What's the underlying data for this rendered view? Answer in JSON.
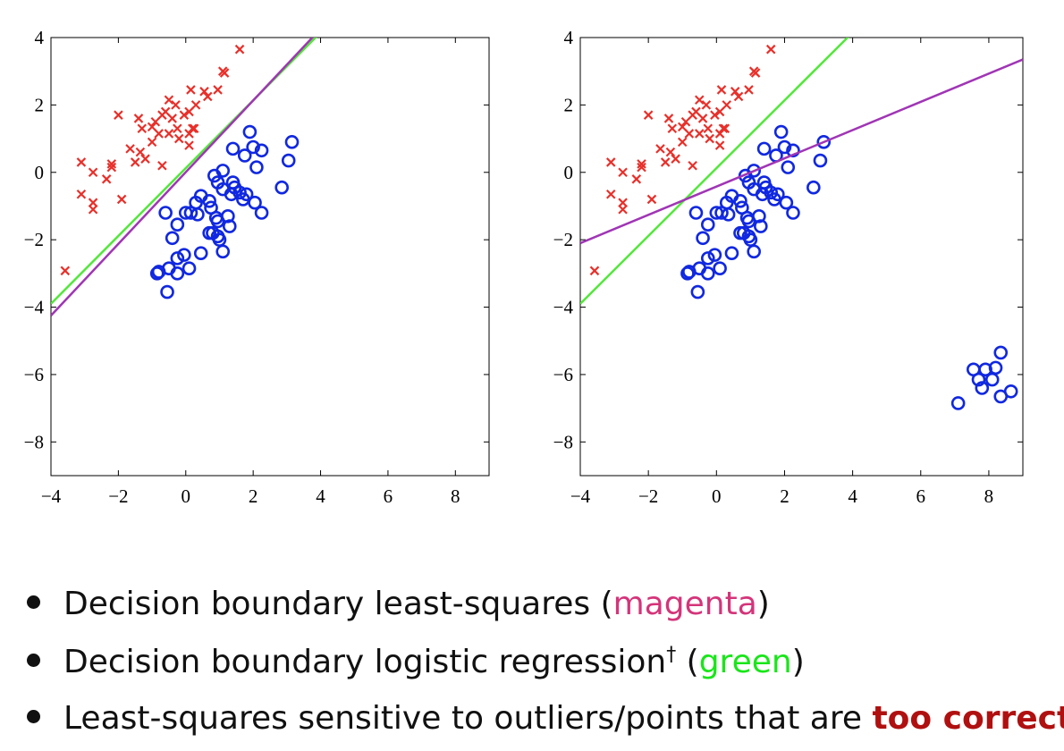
{
  "chart_data": [
    {
      "type": "scatter",
      "xlim": [
        -4,
        9
      ],
      "ylim": [
        -9,
        4
      ],
      "xticks": [
        {
          "value": -4,
          "label": "−4"
        },
        {
          "value": -2,
          "label": "−2"
        },
        0,
        2,
        4,
        6,
        8
      ],
      "yticks": [
        4,
        2,
        0,
        {
          "value": -2,
          "label": "−2"
        },
        {
          "value": -4,
          "label": "−4"
        },
        {
          "value": -6,
          "label": "−6"
        },
        {
          "value": -8,
          "label": "−8"
        }
      ],
      "series": [
        {
          "style": "cross",
          "color": "#e8302a",
          "x": [
            -3.58,
            -3.1,
            -2.75,
            -3.1,
            -2.75,
            -2.75,
            -2.35,
            -2.2,
            -2.2,
            -2.0,
            -1.9,
            -1.65,
            -1.5,
            -1.4,
            -1.35,
            -1.2,
            -1.3,
            -1.0,
            -1.0,
            -0.9,
            -0.8,
            -0.7,
            -0.6,
            -0.5,
            -0.5,
            -0.4,
            -0.3,
            -0.25,
            -0.2,
            -0.05,
            0.1,
            0.15,
            0.1,
            0.2,
            0.1,
            0.25,
            0.55,
            0.65,
            0.95,
            1.1,
            1.15,
            1.6,
            0.3,
            -0.7
          ],
          "y": [
            -2.92,
            0.3,
            0.0,
            -0.65,
            -0.9,
            -1.1,
            -0.2,
            0.25,
            0.15,
            1.7,
            -0.8,
            0.7,
            0.3,
            1.6,
            0.6,
            0.4,
            1.3,
            1.35,
            0.9,
            1.5,
            1.15,
            0.2,
            1.8,
            2.15,
            1.15,
            1.6,
            2.0,
            1.3,
            1.0,
            1.7,
            1.15,
            2.45,
            1.8,
            1.3,
            0.8,
            1.3,
            2.4,
            2.25,
            2.45,
            3.0,
            2.95,
            3.65,
            2.0,
            1.7
          ]
        },
        {
          "style": "circle",
          "color": "#1028e0",
          "x": [
            -0.85,
            -0.8,
            -0.55,
            -0.5,
            -0.25,
            -0.25,
            0.1,
            -0.05,
            -0.6,
            -0.4,
            -0.25,
            0.0,
            0.15,
            0.35,
            0.3,
            0.45,
            0.7,
            0.75,
            0.45,
            0.7,
            0.8,
            0.95,
            1.0,
            0.9,
            0.95,
            1.1,
            1.25,
            1.3,
            0.85,
            1.1,
            0.95,
            1.1,
            1.35,
            1.4,
            1.45,
            1.6,
            1.7,
            1.8,
            1.4,
            1.75,
            1.9,
            2.0,
            2.1,
            2.25,
            2.05,
            2.25,
            2.85,
            3.05,
            3.15
          ],
          "y": [
            -3.0,
            -2.95,
            -3.55,
            -2.85,
            -3.0,
            -2.55,
            -2.85,
            -2.45,
            -1.2,
            -1.95,
            -1.55,
            -1.2,
            -1.2,
            -1.25,
            -0.9,
            -0.7,
            -0.85,
            -1.05,
            -2.4,
            -1.8,
            -1.8,
            -1.9,
            -2.0,
            -1.35,
            -1.45,
            -2.35,
            -1.3,
            -1.6,
            -0.1,
            0.05,
            -0.3,
            -0.5,
            -0.65,
            -0.3,
            -0.45,
            -0.6,
            -0.8,
            -0.65,
            0.7,
            0.5,
            1.2,
            0.75,
            0.15,
            0.65,
            -0.9,
            -1.2,
            -0.45,
            0.35,
            0.9
          ]
        },
        {
          "style": "line",
          "color": "#52e83a",
          "x": [
            -4,
            3.95
          ],
          "y": [
            -3.9,
            4.1
          ]
        },
        {
          "style": "line",
          "color": "#a035b5",
          "x": [
            -4,
            3.85
          ],
          "y": [
            -4.25,
            4.1
          ]
        }
      ]
    },
    {
      "type": "scatter",
      "xlim": [
        -4,
        9
      ],
      "ylim": [
        -9,
        4
      ],
      "xticks": [
        {
          "value": -4,
          "label": "−4"
        },
        {
          "value": -2,
          "label": "−2"
        },
        0,
        2,
        4,
        6,
        8
      ],
      "yticks": [
        4,
        2,
        0,
        {
          "value": -2,
          "label": "−2"
        },
        {
          "value": -4,
          "label": "−4"
        },
        {
          "value": -6,
          "label": "−6"
        },
        {
          "value": -8,
          "label": "−8"
        }
      ],
      "series": [
        {
          "style": "cross",
          "color": "#e8302a",
          "x": [
            -3.58,
            -3.1,
            -2.75,
            -3.1,
            -2.75,
            -2.75,
            -2.35,
            -2.2,
            -2.2,
            -2.0,
            -1.9,
            -1.65,
            -1.5,
            -1.4,
            -1.35,
            -1.2,
            -1.3,
            -1.0,
            -1.0,
            -0.9,
            -0.8,
            -0.7,
            -0.6,
            -0.5,
            -0.5,
            -0.4,
            -0.3,
            -0.25,
            -0.2,
            -0.05,
            0.1,
            0.15,
            0.1,
            0.2,
            0.1,
            0.25,
            0.55,
            0.65,
            0.95,
            1.1,
            1.15,
            1.6,
            0.3,
            -0.7
          ],
          "y": [
            -2.92,
            0.3,
            0.0,
            -0.65,
            -0.9,
            -1.1,
            -0.2,
            0.25,
            0.15,
            1.7,
            -0.8,
            0.7,
            0.3,
            1.6,
            0.6,
            0.4,
            1.3,
            1.35,
            0.9,
            1.5,
            1.15,
            0.2,
            1.8,
            2.15,
            1.15,
            1.6,
            2.0,
            1.3,
            1.0,
            1.7,
            1.15,
            2.45,
            1.8,
            1.3,
            0.8,
            1.3,
            2.4,
            2.25,
            2.45,
            3.0,
            2.95,
            3.65,
            2.0,
            1.7
          ]
        },
        {
          "style": "circle",
          "color": "#1028e0",
          "x": [
            -0.85,
            -0.8,
            -0.55,
            -0.5,
            -0.25,
            -0.25,
            0.1,
            -0.05,
            -0.6,
            -0.4,
            -0.25,
            0.0,
            0.15,
            0.35,
            0.3,
            0.45,
            0.7,
            0.75,
            0.45,
            0.7,
            0.8,
            0.95,
            1.0,
            0.9,
            0.95,
            1.1,
            1.25,
            1.3,
            0.85,
            1.1,
            0.95,
            1.1,
            1.35,
            1.4,
            1.45,
            1.6,
            1.7,
            1.8,
            1.4,
            1.75,
            1.9,
            2.0,
            2.1,
            2.25,
            2.05,
            2.25,
            2.85,
            3.05,
            3.15,
            8.35,
            7.55,
            7.9,
            8.2,
            7.7,
            8.1,
            7.8,
            8.65,
            8.35,
            7.1
          ],
          "y": [
            -3.0,
            -2.95,
            -3.55,
            -2.85,
            -3.0,
            -2.55,
            -2.85,
            -2.45,
            -1.2,
            -1.95,
            -1.55,
            -1.2,
            -1.2,
            -1.25,
            -0.9,
            -0.7,
            -0.85,
            -1.05,
            -2.4,
            -1.8,
            -1.8,
            -1.9,
            -2.0,
            -1.35,
            -1.45,
            -2.35,
            -1.3,
            -1.6,
            -0.1,
            0.05,
            -0.3,
            -0.5,
            -0.65,
            -0.3,
            -0.45,
            -0.6,
            -0.8,
            -0.65,
            0.7,
            0.5,
            1.2,
            0.75,
            0.15,
            0.65,
            -0.9,
            -1.2,
            -0.45,
            0.35,
            0.9,
            -5.35,
            -5.85,
            -5.85,
            -5.8,
            -6.15,
            -6.15,
            -6.4,
            -6.5,
            -6.65,
            -6.85
          ]
        },
        {
          "style": "line",
          "color": "#52e83a",
          "x": [
            -4,
            3.95
          ],
          "y": [
            -3.9,
            4.1
          ]
        },
        {
          "style": "line",
          "color": "#a035b5",
          "x": [
            -4,
            9
          ],
          "y": [
            -2.1,
            3.35
          ]
        }
      ]
    }
  ],
  "bullets": [
    [
      "Decision boundary least-squares (",
      "magenta",
      ")"
    ],
    [
      "Decision boundary logistic regression",
      "†",
      " (",
      "green",
      ")"
    ],
    [
      "Least-squares sensitive to outliers/points that are ",
      "too correct"
    ]
  ]
}
